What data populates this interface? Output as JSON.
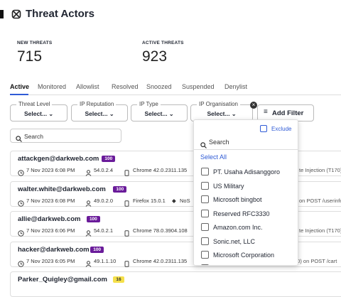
{
  "header": {
    "title": "Threat Actors"
  },
  "stats": [
    {
      "label": "NEW THREATS",
      "value": "715"
    },
    {
      "label": "ACTIVE THREATS",
      "value": "923"
    }
  ],
  "tabs": [
    "Active",
    "Monitored",
    "Allowlist",
    "Resolved",
    "Snoozed",
    "Suspended",
    "Denylist"
  ],
  "filters": [
    {
      "label": "Threat Level",
      "value": "Select..."
    },
    {
      "label": "IP Reputation",
      "value": "Select..."
    },
    {
      "label": "IP Type",
      "value": "Select..."
    },
    {
      "label": "IP Organisation",
      "value": "Select..."
    }
  ],
  "add_filter": "Add Filter",
  "search_placeholder": "Search",
  "dropdown": {
    "exclude": "Exclude",
    "search_placeholder": "Search",
    "select_all": "Select All",
    "options": [
      "PT. Usaha Adisanggoro",
      "US Military",
      "Microsoft bingbot",
      "Reserved RFC3330",
      "Amazon.com Inc.",
      "Sonic.net, LLC",
      "Microsoft Corporation"
    ]
  },
  "rows": [
    {
      "email": "attackgen@darkweb.com",
      "score": "100",
      "date": "7 Nov 2023 6:08 PM",
      "ip": "54.0.2.4",
      "browser": "Chrome 42.0.2311.135",
      "detail": "te Injection (T170)"
    },
    {
      "email": "walter.white@darkweb.com",
      "score": "100",
      "date": "7 Nov 2023 6:08 PM",
      "ip": "49.0.2.0",
      "browser": "Firefox 15.0.1",
      "extra": "NoS",
      "detail": "on POST /userinfo"
    },
    {
      "email": "allie@darkweb.com",
      "score": "100",
      "date": "7 Nov 2023 6:06 PM",
      "ip": "54.0.2.1",
      "browser": "Chrome 78.0.3904.108",
      "detail": "te Injection (T170)"
    },
    {
      "email": "hacker@darkweb.com",
      "score": "100",
      "date": "7 Nov 2023 6:05 PM",
      "ip": "49.1.1.10",
      "browser": "Chrome 42.0.2311.135",
      "detail": "30) on POST /cart"
    },
    {
      "email": "Parker_Quigley@gmail.com",
      "score": "16"
    }
  ]
}
